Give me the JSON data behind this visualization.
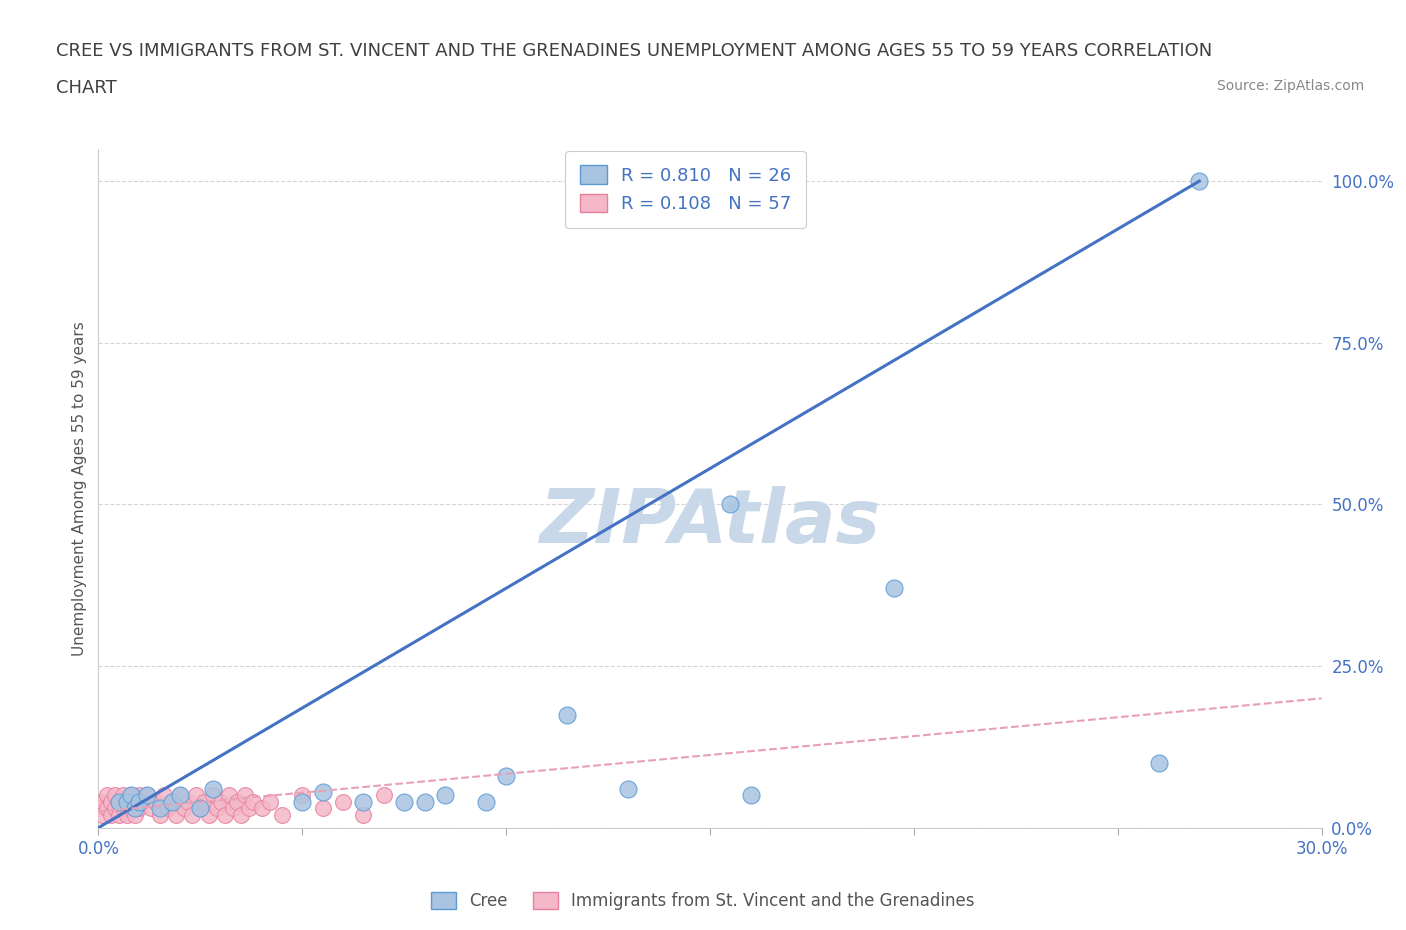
{
  "title_line1": "CREE VS IMMIGRANTS FROM ST. VINCENT AND THE GRENADINES UNEMPLOYMENT AMONG AGES 55 TO 59 YEARS CORRELATION",
  "title_line2": "CHART",
  "source_text": "Source: ZipAtlas.com",
  "ylabel": "Unemployment Among Ages 55 to 59 years",
  "xmin": 0.0,
  "xmax": 0.3,
  "ymin": 0.0,
  "ymax": 1.05,
  "yticks": [
    0.0,
    0.25,
    0.5,
    0.75,
    1.0
  ],
  "ytick_labels": [
    "0.0%",
    "25.0%",
    "50.0%",
    "75.0%",
    "100.0%"
  ],
  "xticks": [
    0.0,
    0.05,
    0.1,
    0.15,
    0.2,
    0.25,
    0.3
  ],
  "cree_color": "#a8c4e0",
  "cree_edge_color": "#5b9bd5",
  "svg_color": "#f4b8c8",
  "svg_edge_color": "#e87fa0",
  "trend_cree_color": "#4472c4",
  "trend_svg_color": "#e8a0b8",
  "cree_R": 0.81,
  "cree_N": 26,
  "svg_R": 0.108,
  "svg_N": 57,
  "watermark": "ZIPAtlas",
  "watermark_color": "#c8d8e8",
  "cree_x": [
    0.005,
    0.007,
    0.008,
    0.009,
    0.01,
    0.012,
    0.015,
    0.018,
    0.02,
    0.025,
    0.028,
    0.05,
    0.055,
    0.065,
    0.075,
    0.08,
    0.085,
    0.095,
    0.1,
    0.115,
    0.13,
    0.155,
    0.16,
    0.195,
    0.26,
    0.27
  ],
  "cree_y": [
    0.04,
    0.04,
    0.05,
    0.03,
    0.04,
    0.05,
    0.03,
    0.04,
    0.05,
    0.03,
    0.06,
    0.04,
    0.055,
    0.04,
    0.04,
    0.04,
    0.05,
    0.04,
    0.08,
    0.175,
    0.06,
    0.5,
    0.05,
    0.37,
    0.1,
    1.0
  ],
  "svg_x": [
    0.0,
    0.001,
    0.001,
    0.002,
    0.002,
    0.003,
    0.003,
    0.004,
    0.004,
    0.005,
    0.005,
    0.006,
    0.006,
    0.007,
    0.007,
    0.008,
    0.008,
    0.009,
    0.009,
    0.01,
    0.01,
    0.011,
    0.012,
    0.013,
    0.014,
    0.015,
    0.016,
    0.017,
    0.018,
    0.019,
    0.02,
    0.021,
    0.022,
    0.023,
    0.024,
    0.025,
    0.026,
    0.027,
    0.028,
    0.029,
    0.03,
    0.031,
    0.032,
    0.033,
    0.034,
    0.035,
    0.036,
    0.037,
    0.038,
    0.04,
    0.042,
    0.045,
    0.05,
    0.055,
    0.06,
    0.065,
    0.07
  ],
  "svg_y": [
    0.03,
    0.04,
    0.02,
    0.05,
    0.03,
    0.04,
    0.02,
    0.05,
    0.03,
    0.04,
    0.02,
    0.05,
    0.03,
    0.04,
    0.02,
    0.05,
    0.03,
    0.04,
    0.02,
    0.05,
    0.03,
    0.04,
    0.05,
    0.03,
    0.04,
    0.02,
    0.05,
    0.03,
    0.04,
    0.02,
    0.05,
    0.03,
    0.04,
    0.02,
    0.05,
    0.03,
    0.04,
    0.02,
    0.05,
    0.03,
    0.04,
    0.02,
    0.05,
    0.03,
    0.04,
    0.02,
    0.05,
    0.03,
    0.04,
    0.03,
    0.04,
    0.02,
    0.05,
    0.03,
    0.04,
    0.02,
    0.05
  ],
  "cree_trend_x0": 0.0,
  "cree_trend_y0": 0.0,
  "cree_trend_x1": 0.27,
  "cree_trend_y1": 1.0,
  "svg_trend_x0": 0.0,
  "svg_trend_y0": 0.025,
  "svg_trend_x1": 0.3,
  "svg_trend_y1": 0.2,
  "background_color": "#ffffff",
  "grid_color": "#cccccc",
  "title_color": "#404040",
  "axis_color": "#4472c4",
  "legend_label_cree": "Cree",
  "legend_label_svg": "Immigrants from St. Vincent and the Grenadines"
}
